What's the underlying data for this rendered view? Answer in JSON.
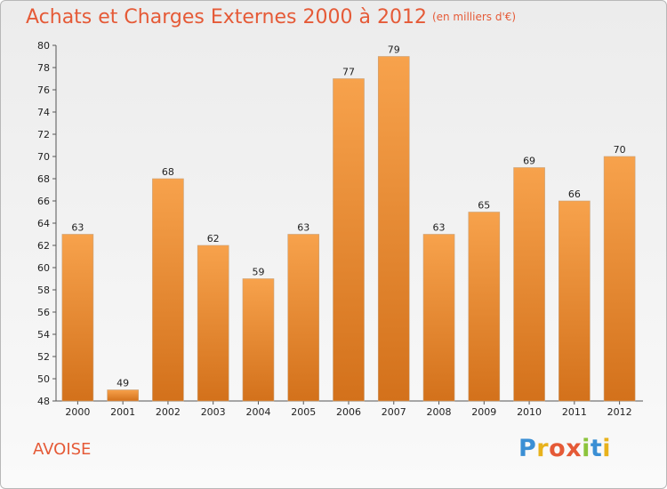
{
  "header": {
    "title": "Achats et Charges Externes 2000 à 2012",
    "subtitle": "(en milliers d'€)"
  },
  "footer": {
    "commune": "AVOISE",
    "logo_text": "Proxiti"
  },
  "colors": {
    "bar_top": "#f7a24c",
    "bar_bottom": "#d3711b",
    "title": "#e55a37",
    "logo": [
      "#3b8fd4",
      "#e8b21c",
      "#e55a37",
      "#e55a37",
      "#8cc43c",
      "#3b8fd4",
      "#e8b21c"
    ]
  },
  "chart_data": {
    "type": "bar",
    "title": "Achats et Charges Externes 2000 à 2012",
    "subtitle": "(en milliers d'€)",
    "categories": [
      "2000",
      "2001",
      "2002",
      "2003",
      "2004",
      "2005",
      "2006",
      "2007",
      "2008",
      "2009",
      "2010",
      "2011",
      "2012"
    ],
    "values": [
      63,
      49,
      68,
      62,
      59,
      63,
      77,
      79,
      63,
      65,
      69,
      66,
      70
    ],
    "ylim": [
      48,
      80
    ],
    "yticks": [
      48,
      50,
      52,
      54,
      56,
      58,
      60,
      62,
      64,
      66,
      68,
      70,
      72,
      74,
      76,
      78,
      80
    ],
    "grid": false,
    "xlabel": "",
    "ylabel": ""
  }
}
